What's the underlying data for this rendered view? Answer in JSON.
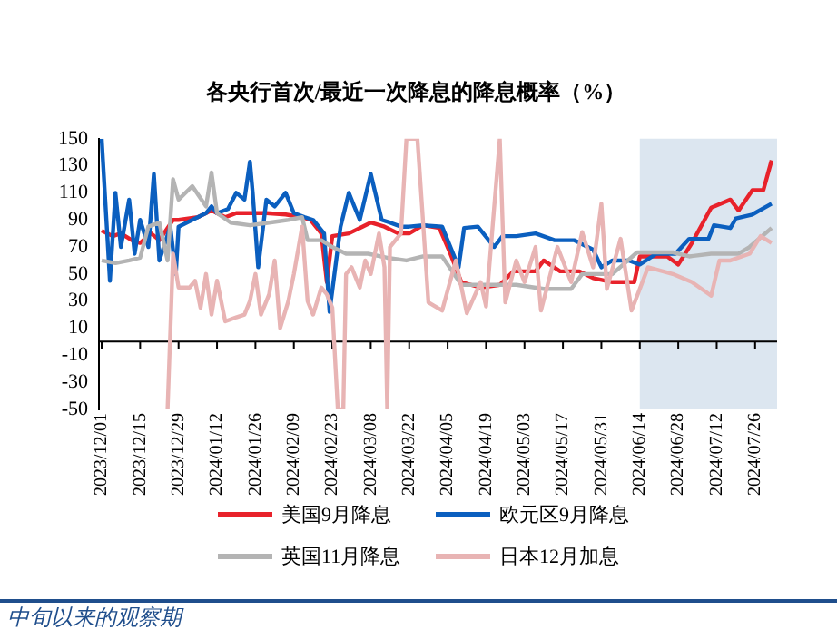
{
  "chart_data": {
    "type": "line",
    "title": "各央行首次/最近一次降息的降息概率（%）",
    "legend": "bottom",
    "marker": "none",
    "xlim": [
      "2023-11-30",
      "2024-08-03"
    ],
    "ylim": [
      -50,
      150
    ],
    "yticks": [
      -50,
      -30,
      -10,
      10,
      30,
      50,
      70,
      90,
      110,
      130,
      150
    ],
    "xticks": [
      {
        "value": "2023-12-01",
        "label": "2023/12/01"
      },
      {
        "value": "2023-12-15",
        "label": "2023/12/15"
      },
      {
        "value": "2023-12-29",
        "label": "2023/12/29"
      },
      {
        "value": "2024-01-12",
        "label": "2024/01/12"
      },
      {
        "value": "2024-01-26",
        "label": "2024/01/26"
      },
      {
        "value": "2024-02-09",
        "label": "2024/02/09"
      },
      {
        "value": "2024-02-23",
        "label": "2024/02/23"
      },
      {
        "value": "2024-03-08",
        "label": "2024/03/08"
      },
      {
        "value": "2024-03-22",
        "label": "2024/03/22"
      },
      {
        "value": "2024-04-05",
        "label": "2024/04/05"
      },
      {
        "value": "2024-04-19",
        "label": "2024/04/19"
      },
      {
        "value": "2024-05-03",
        "label": "2024/05/03"
      },
      {
        "value": "2024-05-17",
        "label": "2024/05/17"
      },
      {
        "value": "2024-05-31",
        "label": "2024/05/31"
      },
      {
        "value": "2024-06-14",
        "label": "2024/06/14"
      },
      {
        "value": "2024-06-28",
        "label": "2024/06/28"
      },
      {
        "value": "2024-07-12",
        "label": "2024/07/12"
      },
      {
        "value": "2024-07-26",
        "label": "2024/07/26"
      }
    ],
    "bands": [
      {
        "axis": "x",
        "from": "2024-06-14",
        "to": "2024-08-03",
        "color": "#dce6f0"
      }
    ],
    "series": [
      {
        "name": "日本12月加息",
        "color": "#e8b4b4",
        "x": [
          "2023-12-25",
          "2023-12-27",
          "2023-12-29",
          "2024-01-02",
          "2024-01-04",
          "2024-01-06",
          "2024-01-08",
          "2024-01-10",
          "2024-01-12",
          "2024-01-15",
          "2024-01-19",
          "2024-01-22",
          "2024-01-24",
          "2024-01-26",
          "2024-01-28",
          "2024-01-31",
          "2024-02-02",
          "2024-02-04",
          "2024-02-07",
          "2024-02-09",
          "2024-02-12",
          "2024-02-14",
          "2024-02-16",
          "2024-02-19",
          "2024-02-21",
          "2024-02-23",
          "2024-02-25",
          "2024-02-27",
          "2024-02-28",
          "2024-03-01",
          "2024-03-04",
          "2024-03-06",
          "2024-03-08",
          "2024-03-11",
          "2024-03-13",
          "2024-03-14",
          "2024-03-15",
          "2024-03-19",
          "2024-03-21",
          "2024-03-25",
          "2024-03-27",
          "2024-03-29",
          "2024-04-03",
          "2024-04-08",
          "2024-04-12",
          "2024-04-17",
          "2024-04-19",
          "2024-04-24",
          "2024-04-26",
          "2024-04-30",
          "2024-05-03",
          "2024-05-07",
          "2024-05-09",
          "2024-05-15",
          "2024-05-20",
          "2024-05-24",
          "2024-05-28",
          "2024-05-31",
          "2024-06-02",
          "2024-06-07",
          "2024-06-11",
          "2024-06-17",
          "2024-06-26",
          "2024-07-03",
          "2024-07-10",
          "2024-07-13",
          "2024-07-17",
          "2024-07-24",
          "2024-07-28",
          "2024-08-01"
        ],
        "values": [
          -50,
          65,
          40,
          40,
          45,
          25,
          50,
          20,
          45,
          15,
          18,
          20,
          30,
          50,
          20,
          35,
          60,
          10,
          30,
          50,
          85,
          30,
          20,
          40,
          35,
          25,
          -50,
          -50,
          50,
          55,
          40,
          60,
          50,
          80,
          55,
          -50,
          70,
          80,
          150,
          150,
          90,
          29,
          23,
          60,
          21,
          44,
          26,
          150,
          29,
          60,
          44,
          70,
          23,
          70,
          44,
          81,
          55,
          102,
          39,
          76,
          23,
          55,
          50,
          44,
          34,
          60,
          60,
          65,
          78,
          73
        ]
      },
      {
        "name": "英国11月降息",
        "color": "#b4b4b4",
        "x": [
          "2023-12-01",
          "2023-12-06",
          "2023-12-11",
          "2023-12-15",
          "2023-12-18",
          "2023-12-22",
          "2023-12-25",
          "2023-12-27",
          "2023-12-29",
          "2024-01-03",
          "2024-01-08",
          "2024-01-10",
          "2024-01-12",
          "2024-01-17",
          "2024-01-24",
          "2024-01-31",
          "2024-02-07",
          "2024-02-12",
          "2024-02-14",
          "2024-02-19",
          "2024-02-23",
          "2024-02-28",
          "2024-03-07",
          "2024-03-14",
          "2024-03-21",
          "2024-03-27",
          "2024-04-03",
          "2024-04-10",
          "2024-04-20",
          "2024-04-30",
          "2024-05-10",
          "2024-05-20",
          "2024-05-24",
          "2024-06-04",
          "2024-06-13",
          "2024-06-26",
          "2024-07-02",
          "2024-07-10",
          "2024-07-20",
          "2024-07-24",
          "2024-08-01"
        ],
        "values": [
          60,
          58,
          60,
          62,
          85,
          88,
          60,
          120,
          105,
          115,
          100,
          125,
          95,
          88,
          86,
          88,
          90,
          92,
          75,
          75,
          70,
          65,
          65,
          62,
          60,
          63,
          63,
          42,
          42,
          42,
          39,
          39,
          50,
          50,
          66,
          66,
          63,
          65,
          65,
          70,
          84
        ]
      },
      {
        "name": "欧元区9月降息",
        "color": "#0b5fbf",
        "x": [
          "2023-12-01",
          "2023-12-04",
          "2023-12-06",
          "2023-12-08",
          "2023-12-11",
          "2023-12-13",
          "2023-12-15",
          "2023-12-18",
          "2023-12-20",
          "2023-12-22",
          "2023-12-26",
          "2023-12-28",
          "2023-12-29",
          "2024-01-03",
          "2024-01-08",
          "2024-01-10",
          "2024-01-12",
          "2024-01-16",
          "2024-01-19",
          "2024-01-22",
          "2024-01-24",
          "2024-01-25",
          "2024-01-27",
          "2024-01-30",
          "2024-02-02",
          "2024-02-06",
          "2024-02-09",
          "2024-02-13",
          "2024-02-16",
          "2024-02-20",
          "2024-02-22",
          "2024-02-26",
          "2024-02-29",
          "2024-03-04",
          "2024-03-08",
          "2024-03-12",
          "2024-03-15",
          "2024-03-19",
          "2024-03-22",
          "2024-03-27",
          "2024-04-03",
          "2024-04-09",
          "2024-04-11",
          "2024-04-16",
          "2024-04-22",
          "2024-04-25",
          "2024-04-30",
          "2024-05-07",
          "2024-05-14",
          "2024-05-21",
          "2024-05-28",
          "2024-05-31",
          "2024-06-04",
          "2024-06-10",
          "2024-06-14",
          "2024-06-20",
          "2024-06-27",
          "2024-07-02",
          "2024-07-09",
          "2024-07-11",
          "2024-07-17",
          "2024-07-19",
          "2024-07-25",
          "2024-08-01"
        ],
        "values": [
          150,
          45,
          110,
          70,
          105,
          65,
          90,
          70,
          124,
          60,
          85,
          50,
          85,
          90,
          95,
          100,
          95,
          98,
          110,
          105,
          133,
          110,
          55,
          105,
          100,
          110,
          95,
          92,
          90,
          80,
          22,
          85,
          110,
          90,
          124,
          90,
          88,
          85,
          85,
          86,
          85,
          55,
          84,
          85,
          70,
          78,
          78,
          80,
          75,
          75,
          68,
          55,
          60,
          60,
          57,
          65,
          65,
          76,
          76,
          86,
          84,
          91,
          94,
          102
        ]
      },
      {
        "name": "美国9月降息",
        "color": "#e8222b",
        "x": [
          "2023-12-01",
          "2023-12-05",
          "2023-12-08",
          "2023-12-12",
          "2023-12-15",
          "2023-12-19",
          "2023-12-22",
          "2023-12-27",
          "2023-12-29",
          "2024-01-05",
          "2024-01-10",
          "2024-01-15",
          "2024-01-19",
          "2024-01-24",
          "2024-01-30",
          "2024-02-06",
          "2024-02-12",
          "2024-02-15",
          "2024-02-19",
          "2024-02-21",
          "2024-02-23",
          "2024-02-29",
          "2024-03-05",
          "2024-03-08",
          "2024-03-13",
          "2024-03-18",
          "2024-03-22",
          "2024-03-27",
          "2024-04-02",
          "2024-04-06",
          "2024-04-10",
          "2024-04-17",
          "2024-04-24",
          "2024-04-29",
          "2024-05-07",
          "2024-05-10",
          "2024-05-16",
          "2024-05-23",
          "2024-05-28",
          "2024-06-04",
          "2024-06-12",
          "2024-06-14",
          "2024-06-24",
          "2024-06-28",
          "2024-07-03",
          "2024-07-10",
          "2024-07-17",
          "2024-07-20",
          "2024-07-25",
          "2024-07-29",
          "2024-08-01"
        ],
        "values": [
          82,
          78,
          80,
          75,
          73,
          80,
          75,
          90,
          90,
          92,
          97,
          92,
          95,
          95,
          95,
          94,
          92,
          90,
          80,
          44,
          78,
          80,
          85,
          88,
          85,
          80,
          80,
          86,
          84,
          65,
          44,
          40,
          42,
          52,
          52,
          60,
          52,
          52,
          47,
          44,
          44,
          63,
          63,
          57,
          73,
          99,
          105,
          97,
          112,
          112,
          134
        ]
      }
    ],
    "annotations": [
      "中旬以来的观察期"
    ]
  }
}
